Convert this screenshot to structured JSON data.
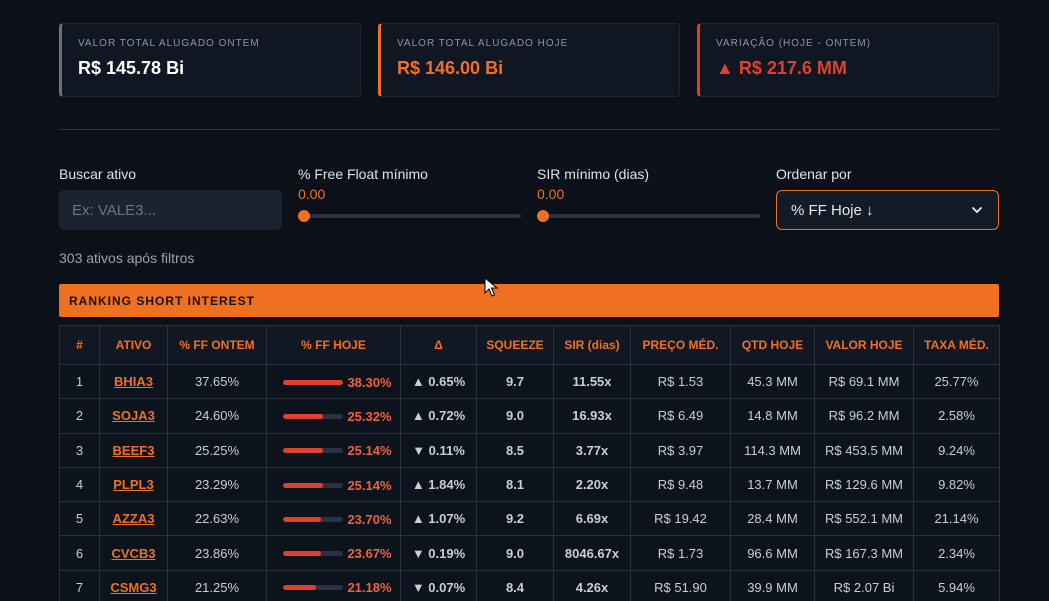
{
  "summary_cards": [
    {
      "label": "VALOR TOTAL ALUGADO ONTEM",
      "value": "R$ 145.78 Bi"
    },
    {
      "label": "VALOR TOTAL ALUGADO HOJE",
      "value": "R$ 146.00 Bi"
    },
    {
      "label": "VARIAÇÃO (HOJE - ONTEM)",
      "value": "▲ R$ 217.6 MM"
    }
  ],
  "filters": {
    "search": {
      "label": "Buscar ativo",
      "placeholder": "Ex: VALE3..."
    },
    "free_float": {
      "label": "% Free Float mínimo",
      "value": "0.00",
      "level": 0
    },
    "sir": {
      "label": "SIR mínimo (dias)",
      "value": "0.00",
      "level": 0
    },
    "sort": {
      "label": "Ordenar por",
      "selected": "% FF Hoje ↓"
    }
  },
  "result_count": "303 ativos após filtros",
  "section_title": "RANKING SHORT INTEREST",
  "colors": {
    "accent": "#f07022",
    "negative": "#e0402d",
    "positive": "#2fb55a",
    "warning": "#f5c030"
  },
  "table": {
    "headers": [
      "#",
      "ATIVO",
      "% FF ONTEM",
      "% FF HOJE",
      "Δ",
      "SQUEEZE",
      "SIR (dias)",
      "PREÇO MÉD.",
      "QTD HOJE",
      "VALOR HOJE",
      "TAXA MÉD."
    ],
    "rows": [
      {
        "n": "1",
        "ativo": "BHIA3",
        "ff_ontem": "37.65%",
        "ff_hoje": "38.30%",
        "ff_hoje_fill": 1.0,
        "delta": "▲ 0.65%",
        "delta_dir": "up",
        "squeeze": "9.7",
        "sir": "11.55x",
        "sir_level": "red",
        "preco": "R$ 1.53",
        "qtd": "45.3 MM",
        "valor": "R$ 69.1 MM",
        "taxa": "25.77%",
        "taxa_hi": true
      },
      {
        "n": "2",
        "ativo": "SOJA3",
        "ff_ontem": "24.60%",
        "ff_hoje": "25.32%",
        "ff_hoje_fill": 0.66,
        "delta": "▲ 0.72%",
        "delta_dir": "up",
        "squeeze": "9.0",
        "sir": "16.93x",
        "sir_level": "red",
        "preco": "R$ 6.49",
        "qtd": "14.8 MM",
        "valor": "R$ 96.2 MM",
        "taxa": "2.58%",
        "taxa_hi": false
      },
      {
        "n": "3",
        "ativo": "BEEF3",
        "ff_ontem": "25.25%",
        "ff_hoje": "25.14%",
        "ff_hoje_fill": 0.66,
        "delta": "▼ 0.11%",
        "delta_dir": "down",
        "squeeze": "8.5",
        "sir": "3.77x",
        "sir_level": "yellow",
        "preco": "R$ 3.97",
        "qtd": "114.3 MM",
        "valor": "R$ 453.5 MM",
        "taxa": "9.24%",
        "taxa_hi": false
      },
      {
        "n": "4",
        "ativo": "PLPL3",
        "ff_ontem": "23.29%",
        "ff_hoje": "25.14%",
        "ff_hoje_fill": 0.66,
        "delta": "▲ 1.84%",
        "delta_dir": "up",
        "squeeze": "8.1",
        "sir": "2.20x",
        "sir_level": "green",
        "preco": "R$ 9.48",
        "qtd": "13.7 MM",
        "valor": "R$ 129.6 MM",
        "taxa": "9.82%",
        "taxa_hi": false
      },
      {
        "n": "5",
        "ativo": "AZZA3",
        "ff_ontem": "22.63%",
        "ff_hoje": "23.70%",
        "ff_hoje_fill": 0.62,
        "delta": "▲ 1.07%",
        "delta_dir": "up",
        "squeeze": "9.2",
        "sir": "6.69x",
        "sir_level": "yellow",
        "preco": "R$ 19.42",
        "qtd": "28.4 MM",
        "valor": "R$ 552.1 MM",
        "taxa": "21.14%",
        "taxa_hi": true
      },
      {
        "n": "6",
        "ativo": "CVCB3",
        "ff_ontem": "23.86%",
        "ff_hoje": "23.67%",
        "ff_hoje_fill": 0.62,
        "delta": "▼ 0.19%",
        "delta_dir": "down",
        "squeeze": "9.0",
        "sir": "8046.67x",
        "sir_level": "red",
        "preco": "R$ 1.73",
        "qtd": "96.6 MM",
        "valor": "R$ 167.3 MM",
        "taxa": "2.34%",
        "taxa_hi": false
      },
      {
        "n": "7",
        "ativo": "CSMG3",
        "ff_ontem": "21.25%",
        "ff_hoje": "21.18%",
        "ff_hoje_fill": 0.55,
        "delta": "▼ 0.07%",
        "delta_dir": "down",
        "squeeze": "8.4",
        "sir": "4.26x",
        "sir_level": "yellow",
        "preco": "R$ 51.90",
        "qtd": "39.9 MM",
        "valor": "R$ 2.07 Bi",
        "taxa": "5.94%",
        "taxa_hi": false
      }
    ]
  }
}
